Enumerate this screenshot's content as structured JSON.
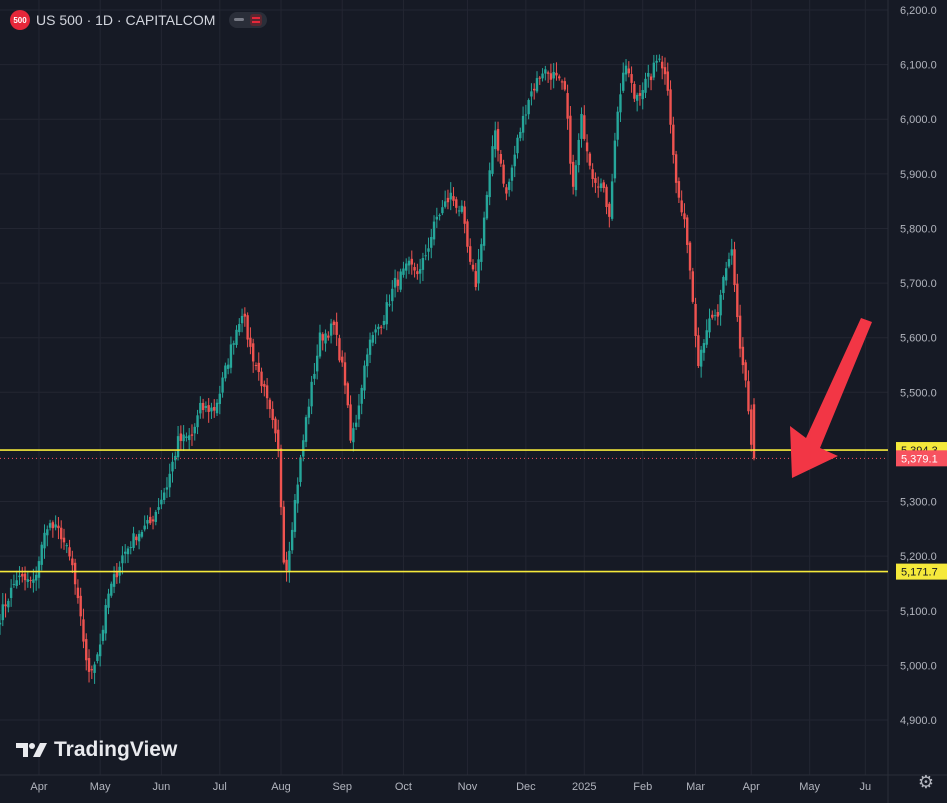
{
  "header": {
    "badge": "500",
    "symbol_title": "US 500 · 1D · CAPITALCOM"
  },
  "logo": {
    "text": "TradingView"
  },
  "colors": {
    "background": "#161a25",
    "up": "#26a69a",
    "down": "#ef5350",
    "level_line": "#f5e93b",
    "last_price": "#f7525f",
    "arrow": "#f23645"
  },
  "icons": {
    "settings": "gear-icon",
    "arrow": "arrow-down-left-icon"
  },
  "chart_data": {
    "type": "candlestick",
    "title": "US 500 · 1D · CAPITALCOM",
    "y_ticks": [
      "6,200.0",
      "6,100.0",
      "6,000.0",
      "5,900.0",
      "5,800.0",
      "5,700.0",
      "5,600.0",
      "5,500.0",
      "5,300.0",
      "5,200.0",
      "5,100.0",
      "5,000.0",
      "4,900.0"
    ],
    "y_tick_values": [
      6200,
      6100,
      6000,
      5900,
      5800,
      5700,
      5600,
      5500,
      5300,
      5200,
      5100,
      5000,
      4900
    ],
    "ylim": [
      4870,
      6210
    ],
    "x_ticks": [
      "Apr",
      "May",
      "Jun",
      "Jul",
      "Aug",
      "Sep",
      "Oct",
      "Nov",
      "Dec",
      "2025",
      "Feb",
      "Mar",
      "Apr",
      "May",
      "Ju"
    ],
    "x_tick_index": [
      0,
      22,
      44,
      65,
      87,
      109,
      131,
      154,
      175,
      196,
      217,
      236,
      256,
      277,
      297
    ],
    "x_index_range": [
      -14,
      303
    ],
    "levels": [
      {
        "value": 5394.3,
        "label": "5,394.3"
      },
      {
        "value": 5171.7,
        "label": "5,171.7"
      }
    ],
    "last_price": {
      "value": 5379.1,
      "label": "5,379.1"
    },
    "annotation": "arrow pointing to the last candle",
    "anchors": [
      [
        -14,
        5090
      ],
      [
        -8,
        5160
      ],
      [
        -2,
        5150
      ],
      [
        3,
        5260
      ],
      [
        8,
        5240
      ],
      [
        12,
        5180
      ],
      [
        18,
        4980
      ],
      [
        22,
        5040
      ],
      [
        25,
        5130
      ],
      [
        30,
        5200
      ],
      [
        35,
        5240
      ],
      [
        40,
        5260
      ],
      [
        46,
        5330
      ],
      [
        50,
        5410
      ],
      [
        55,
        5420
      ],
      [
        58,
        5470
      ],
      [
        63,
        5470
      ],
      [
        65,
        5500
      ],
      [
        70,
        5600
      ],
      [
        73,
        5650
      ],
      [
        76,
        5580
      ],
      [
        80,
        5520
      ],
      [
        84,
        5440
      ],
      [
        86,
        5390
      ],
      [
        88,
        5200
      ],
      [
        89,
        5180
      ],
      [
        92,
        5300
      ],
      [
        96,
        5450
      ],
      [
        101,
        5600
      ],
      [
        106,
        5620
      ],
      [
        110,
        5520
      ],
      [
        112,
        5410
      ],
      [
        114,
        5450
      ],
      [
        118,
        5580
      ],
      [
        124,
        5640
      ],
      [
        128,
        5700
      ],
      [
        133,
        5730
      ],
      [
        137,
        5720
      ],
      [
        143,
        5820
      ],
      [
        148,
        5860
      ],
      [
        152,
        5830
      ],
      [
        155,
        5730
      ],
      [
        157,
        5700
      ],
      [
        160,
        5820
      ],
      [
        164,
        5980
      ],
      [
        168,
        5860
      ],
      [
        172,
        5960
      ],
      [
        176,
        6040
      ],
      [
        181,
        6090
      ],
      [
        185,
        6080
      ],
      [
        189,
        6050
      ],
      [
        192,
        5870
      ],
      [
        195,
        6000
      ],
      [
        199,
        5900
      ],
      [
        202,
        5880
      ],
      [
        205,
        5830
      ],
      [
        208,
        6020
      ],
      [
        211,
        6100
      ],
      [
        214,
        6040
      ],
      [
        217,
        6060
      ],
      [
        220,
        6080
      ],
      [
        223,
        6120
      ],
      [
        226,
        6060
      ],
      [
        229,
        5880
      ],
      [
        233,
        5780
      ],
      [
        237,
        5560
      ],
      [
        240,
        5620
      ],
      [
        244,
        5640
      ],
      [
        246,
        5700
      ],
      [
        249,
        5760
      ],
      [
        252,
        5580
      ],
      [
        254,
        5520
      ],
      [
        256,
        5400
      ],
      [
        257,
        5379.1
      ]
    ]
  }
}
